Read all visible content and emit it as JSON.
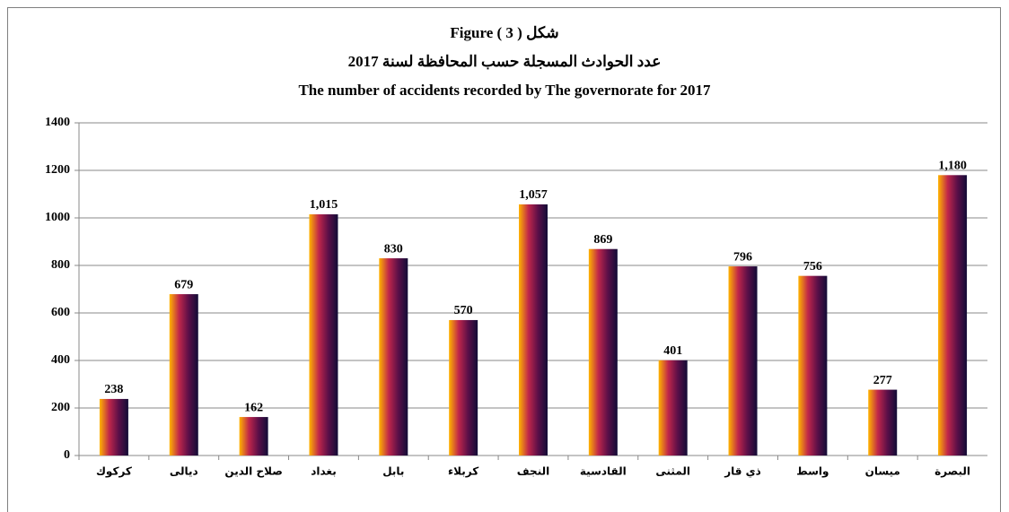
{
  "chart_data": {
    "type": "bar",
    "title": "Figure ( 3 ) شكل",
    "subtitle": "عدد الحوادث المسجلة حسب المحافظة لسنة 2017",
    "subtitle_en": "The number of accidents recorded by The governorate for 2017",
    "categories": [
      "كركوك",
      "ديالى",
      "صلاح الدين",
      "بغداد",
      "بابل",
      "كربلاء",
      "النجف",
      "القادسية",
      "المثنى",
      "ذي قار",
      "واسط",
      "ميسان",
      "البصرة"
    ],
    "values": [
      238,
      679,
      162,
      1015,
      830,
      570,
      1057,
      869,
      401,
      796,
      756,
      277,
      1180
    ],
    "value_labels": [
      "238",
      "679",
      "162",
      "1,015",
      "830",
      "570",
      "1,057",
      "869",
      "401",
      "796",
      "756",
      "277",
      "1,180"
    ],
    "gradient_colors": [
      "#ffb400",
      "#c0264a",
      "#5a0f48",
      "#120c36"
    ],
    "ylim": [
      0,
      1400
    ],
    "yticks": [
      0,
      200,
      400,
      600,
      800,
      1000,
      1200,
      1400
    ],
    "grid": true
  }
}
